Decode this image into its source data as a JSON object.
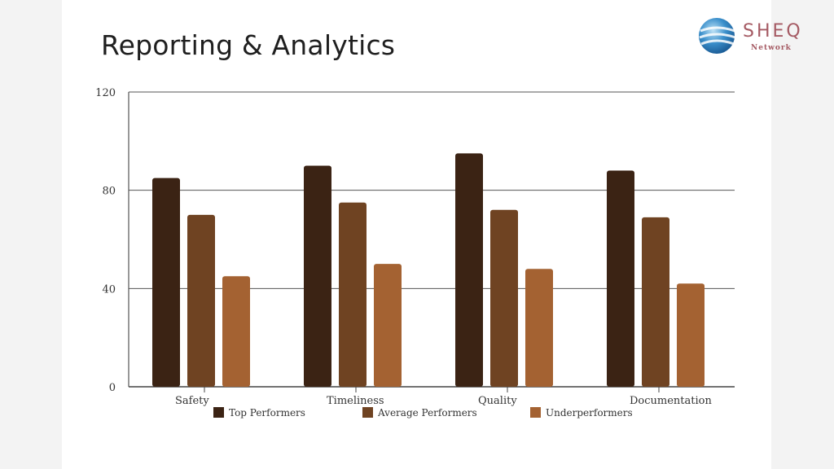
{
  "slide": {
    "title": "Reporting & Analytics"
  },
  "logo": {
    "name": "SHEQ",
    "subtitle": "Network"
  },
  "chart_data": {
    "type": "bar",
    "categories": [
      "Safety",
      "Timeliness",
      "Quality",
      "Documentation"
    ],
    "series": [
      {
        "name": "Top Performers",
        "values": [
          85,
          90,
          95,
          88
        ],
        "color": "#3b2314"
      },
      {
        "name": "Average Performers",
        "values": [
          70,
          75,
          72,
          69
        ],
        "color": "#6f4322"
      },
      {
        "name": "Underperformers",
        "values": [
          45,
          50,
          48,
          42
        ],
        "color": "#a46232"
      }
    ],
    "yticks": [
      0,
      40,
      80,
      120
    ],
    "ylim": [
      0,
      120
    ],
    "grid": true,
    "legend_position": "bottom"
  }
}
